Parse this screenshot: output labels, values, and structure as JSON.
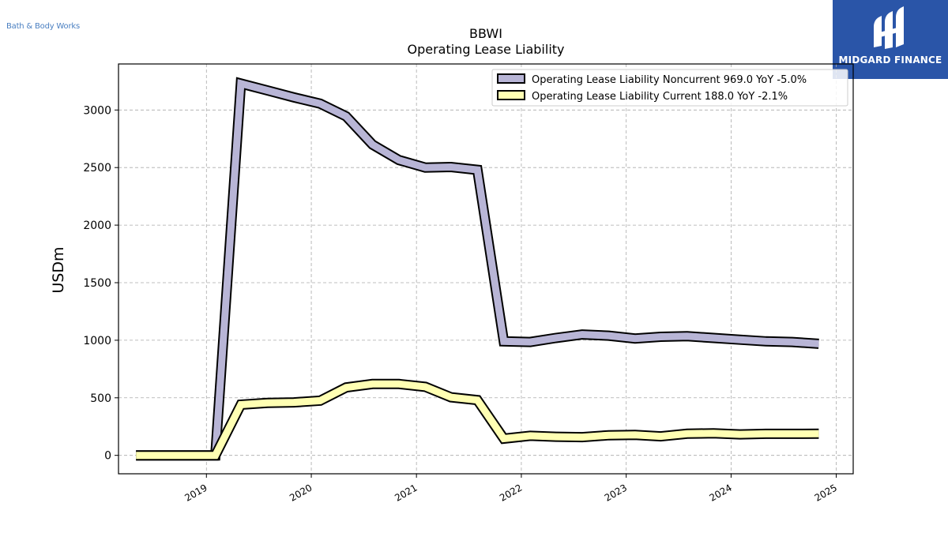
{
  "company": {
    "logo_text": "Bath & Body Works"
  },
  "brand": {
    "name": "MIDGARD FINANCE",
    "color": "#2a55a8"
  },
  "chart_data": {
    "type": "line",
    "title": "BBWI",
    "subtitle": "Operating Lease Liability",
    "ylabel": "USDm",
    "xlabel": "",
    "ylim": [
      -160,
      3400
    ],
    "xlim": [
      "2018-03-01",
      "2025-03-01"
    ],
    "x_ticks": [
      "2019",
      "2020",
      "2021",
      "2022",
      "2023",
      "2024",
      "2025"
    ],
    "y_ticks": [
      0,
      500,
      1000,
      1500,
      2000,
      2500,
      3000
    ],
    "grid": true,
    "legend_position": "top-right",
    "x": [
      "2018-05-01",
      "2018-08-01",
      "2018-11-01",
      "2019-02-01",
      "2019-05-01",
      "2019-08-01",
      "2019-11-01",
      "2020-02-01",
      "2020-05-01",
      "2020-08-01",
      "2020-11-01",
      "2021-02-01",
      "2021-05-01",
      "2021-08-01",
      "2021-11-01",
      "2022-02-01",
      "2022-05-01",
      "2022-08-01",
      "2022-11-01",
      "2023-02-01",
      "2023-05-01",
      "2023-08-01",
      "2023-11-01",
      "2024-02-01",
      "2024-05-01",
      "2024-08-01",
      "2024-11-01"
    ],
    "series": [
      {
        "name": "Operating Lease Liability Noncurrent",
        "legend_label": "Operating Lease Liability Noncurrent  969.0 YoY -5.0%",
        "color": "#b8b5d6",
        "values": [
          0,
          0,
          0,
          0,
          3230,
          3170,
          3110,
          3055,
          2945,
          2700,
          2565,
          2500,
          2505,
          2480,
          990,
          985,
          1020,
          1050,
          1040,
          1015,
          1030,
          1035,
          1020,
          1005,
          990,
          985,
          969
        ]
      },
      {
        "name": "Operating Lease Liability Current",
        "legend_label": "Operating Lease Liability Current  188.0 YoY -2.1%",
        "color": "#ffffb3",
        "values": [
          0,
          0,
          0,
          0,
          440,
          455,
          460,
          475,
          590,
          620,
          620,
          595,
          505,
          480,
          145,
          170,
          162,
          158,
          175,
          178,
          165,
          188,
          192,
          182,
          187,
          187,
          188
        ]
      }
    ]
  }
}
